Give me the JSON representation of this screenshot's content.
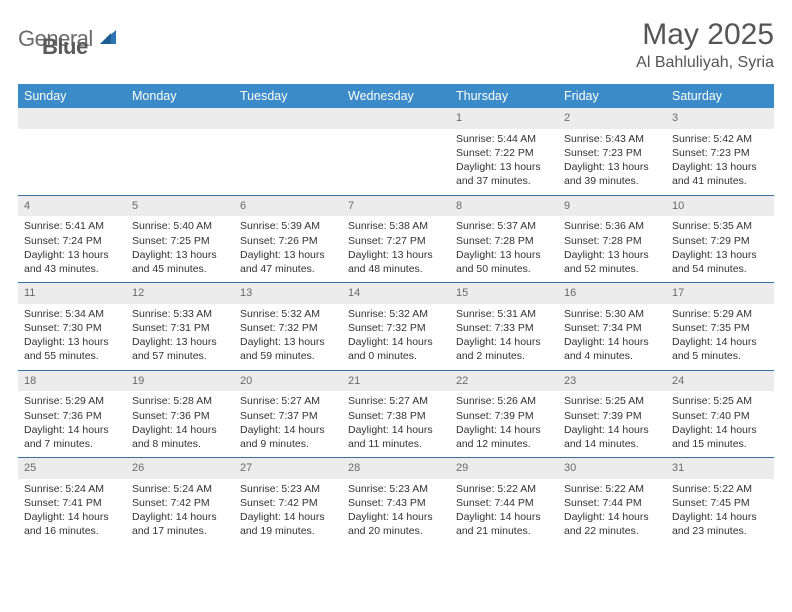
{
  "brand": {
    "text1": "General",
    "text2": "Blue"
  },
  "title": "May 2025",
  "location": "Al Bahluliyah, Syria",
  "colors": {
    "header_bg": "#3b8bc8",
    "header_text": "#ffffff",
    "daynum_bg": "#ececec",
    "daynum_text": "#6a6a6a",
    "row_divider": "#3b6fa0",
    "body_text": "#333333",
    "logo_text": "#6b6b6b",
    "logo_accent": "#2d74b5"
  },
  "weekdays": [
    "Sunday",
    "Monday",
    "Tuesday",
    "Wednesday",
    "Thursday",
    "Friday",
    "Saturday"
  ],
  "calendar": {
    "first_weekday_index": 4,
    "days": [
      {
        "n": 1,
        "sunrise": "5:44 AM",
        "sunset": "7:22 PM",
        "daylight": "13 hours and 37 minutes."
      },
      {
        "n": 2,
        "sunrise": "5:43 AM",
        "sunset": "7:23 PM",
        "daylight": "13 hours and 39 minutes."
      },
      {
        "n": 3,
        "sunrise": "5:42 AM",
        "sunset": "7:23 PM",
        "daylight": "13 hours and 41 minutes."
      },
      {
        "n": 4,
        "sunrise": "5:41 AM",
        "sunset": "7:24 PM",
        "daylight": "13 hours and 43 minutes."
      },
      {
        "n": 5,
        "sunrise": "5:40 AM",
        "sunset": "7:25 PM",
        "daylight": "13 hours and 45 minutes."
      },
      {
        "n": 6,
        "sunrise": "5:39 AM",
        "sunset": "7:26 PM",
        "daylight": "13 hours and 47 minutes."
      },
      {
        "n": 7,
        "sunrise": "5:38 AM",
        "sunset": "7:27 PM",
        "daylight": "13 hours and 48 minutes."
      },
      {
        "n": 8,
        "sunrise": "5:37 AM",
        "sunset": "7:28 PM",
        "daylight": "13 hours and 50 minutes."
      },
      {
        "n": 9,
        "sunrise": "5:36 AM",
        "sunset": "7:28 PM",
        "daylight": "13 hours and 52 minutes."
      },
      {
        "n": 10,
        "sunrise": "5:35 AM",
        "sunset": "7:29 PM",
        "daylight": "13 hours and 54 minutes."
      },
      {
        "n": 11,
        "sunrise": "5:34 AM",
        "sunset": "7:30 PM",
        "daylight": "13 hours and 55 minutes."
      },
      {
        "n": 12,
        "sunrise": "5:33 AM",
        "sunset": "7:31 PM",
        "daylight": "13 hours and 57 minutes."
      },
      {
        "n": 13,
        "sunrise": "5:32 AM",
        "sunset": "7:32 PM",
        "daylight": "13 hours and 59 minutes."
      },
      {
        "n": 14,
        "sunrise": "5:32 AM",
        "sunset": "7:32 PM",
        "daylight": "14 hours and 0 minutes."
      },
      {
        "n": 15,
        "sunrise": "5:31 AM",
        "sunset": "7:33 PM",
        "daylight": "14 hours and 2 minutes."
      },
      {
        "n": 16,
        "sunrise": "5:30 AM",
        "sunset": "7:34 PM",
        "daylight": "14 hours and 4 minutes."
      },
      {
        "n": 17,
        "sunrise": "5:29 AM",
        "sunset": "7:35 PM",
        "daylight": "14 hours and 5 minutes."
      },
      {
        "n": 18,
        "sunrise": "5:29 AM",
        "sunset": "7:36 PM",
        "daylight": "14 hours and 7 minutes."
      },
      {
        "n": 19,
        "sunrise": "5:28 AM",
        "sunset": "7:36 PM",
        "daylight": "14 hours and 8 minutes."
      },
      {
        "n": 20,
        "sunrise": "5:27 AM",
        "sunset": "7:37 PM",
        "daylight": "14 hours and 9 minutes."
      },
      {
        "n": 21,
        "sunrise": "5:27 AM",
        "sunset": "7:38 PM",
        "daylight": "14 hours and 11 minutes."
      },
      {
        "n": 22,
        "sunrise": "5:26 AM",
        "sunset": "7:39 PM",
        "daylight": "14 hours and 12 minutes."
      },
      {
        "n": 23,
        "sunrise": "5:25 AM",
        "sunset": "7:39 PM",
        "daylight": "14 hours and 14 minutes."
      },
      {
        "n": 24,
        "sunrise": "5:25 AM",
        "sunset": "7:40 PM",
        "daylight": "14 hours and 15 minutes."
      },
      {
        "n": 25,
        "sunrise": "5:24 AM",
        "sunset": "7:41 PM",
        "daylight": "14 hours and 16 minutes."
      },
      {
        "n": 26,
        "sunrise": "5:24 AM",
        "sunset": "7:42 PM",
        "daylight": "14 hours and 17 minutes."
      },
      {
        "n": 27,
        "sunrise": "5:23 AM",
        "sunset": "7:42 PM",
        "daylight": "14 hours and 19 minutes."
      },
      {
        "n": 28,
        "sunrise": "5:23 AM",
        "sunset": "7:43 PM",
        "daylight": "14 hours and 20 minutes."
      },
      {
        "n": 29,
        "sunrise": "5:22 AM",
        "sunset": "7:44 PM",
        "daylight": "14 hours and 21 minutes."
      },
      {
        "n": 30,
        "sunrise": "5:22 AM",
        "sunset": "7:44 PM",
        "daylight": "14 hours and 22 minutes."
      },
      {
        "n": 31,
        "sunrise": "5:22 AM",
        "sunset": "7:45 PM",
        "daylight": "14 hours and 23 minutes."
      }
    ]
  },
  "labels": {
    "sunrise": "Sunrise:",
    "sunset": "Sunset:",
    "daylight": "Daylight:"
  }
}
